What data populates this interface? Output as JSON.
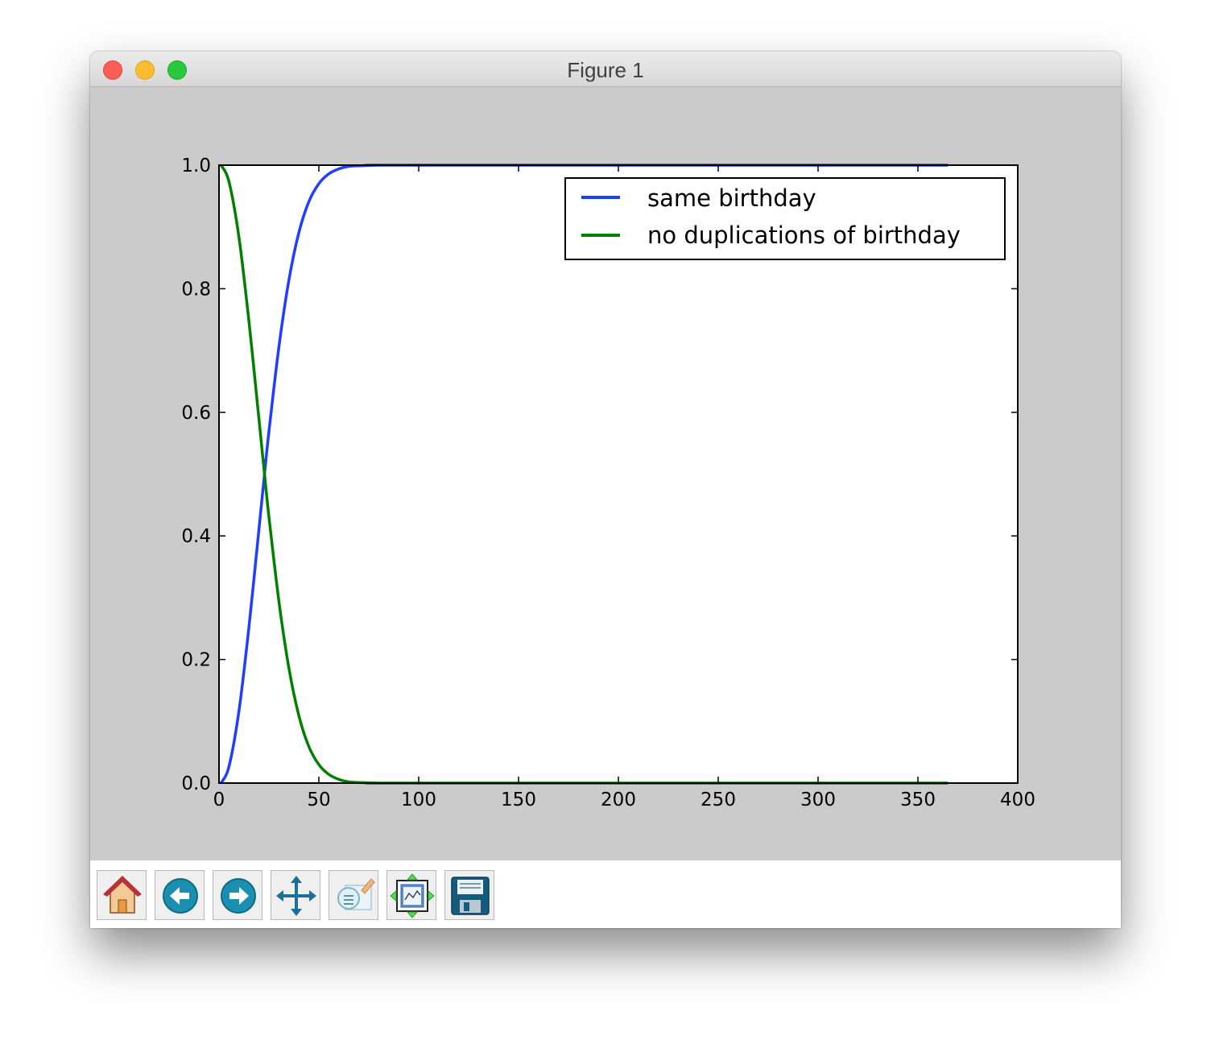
{
  "window": {
    "title": "Figure 1"
  },
  "toolbar": {
    "buttons": [
      {
        "name": "home-button",
        "icon": "home-icon"
      },
      {
        "name": "back-button",
        "icon": "back-arrow-icon"
      },
      {
        "name": "forward-button",
        "icon": "forward-arrow-icon"
      },
      {
        "name": "pan-button",
        "icon": "move-icon"
      },
      {
        "name": "zoom-button",
        "icon": "zoom-rect-icon"
      },
      {
        "name": "subplots-button",
        "icon": "subplots-icon"
      },
      {
        "name": "save-button",
        "icon": "floppy-disk-icon"
      }
    ]
  },
  "chart_data": {
    "type": "line",
    "xlim": [
      0,
      400
    ],
    "ylim": [
      0,
      1.0
    ],
    "xticks": [
      0,
      50,
      100,
      150,
      200,
      250,
      300,
      350,
      400
    ],
    "yticks": [
      "0.0",
      "0.2",
      "0.4",
      "0.6",
      "0.8",
      "1.0"
    ],
    "legend_position": "top-right",
    "grid": false,
    "series": [
      {
        "name": "same birthday",
        "color": "#1f3eff",
        "x": [
          1,
          5,
          10,
          15,
          20,
          23,
          25,
          30,
          35,
          40,
          45,
          50,
          55,
          60,
          65,
          70,
          80,
          100,
          365
        ],
        "y": [
          0.0,
          0.027,
          0.117,
          0.253,
          0.411,
          0.507,
          0.569,
          0.706,
          0.814,
          0.891,
          0.941,
          0.97,
          0.986,
          0.994,
          0.998,
          0.999,
          1.0,
          1.0,
          1.0
        ]
      },
      {
        "name": "no duplications of birthday",
        "color": "#008000",
        "x": [
          1,
          5,
          10,
          15,
          20,
          23,
          25,
          30,
          35,
          40,
          45,
          50,
          55,
          60,
          65,
          70,
          80,
          100,
          365
        ],
        "y": [
          1.0,
          0.973,
          0.883,
          0.747,
          0.589,
          0.493,
          0.431,
          0.294,
          0.186,
          0.109,
          0.059,
          0.03,
          0.014,
          0.006,
          0.002,
          0.001,
          0.0,
          0.0,
          0.0
        ]
      }
    ]
  }
}
